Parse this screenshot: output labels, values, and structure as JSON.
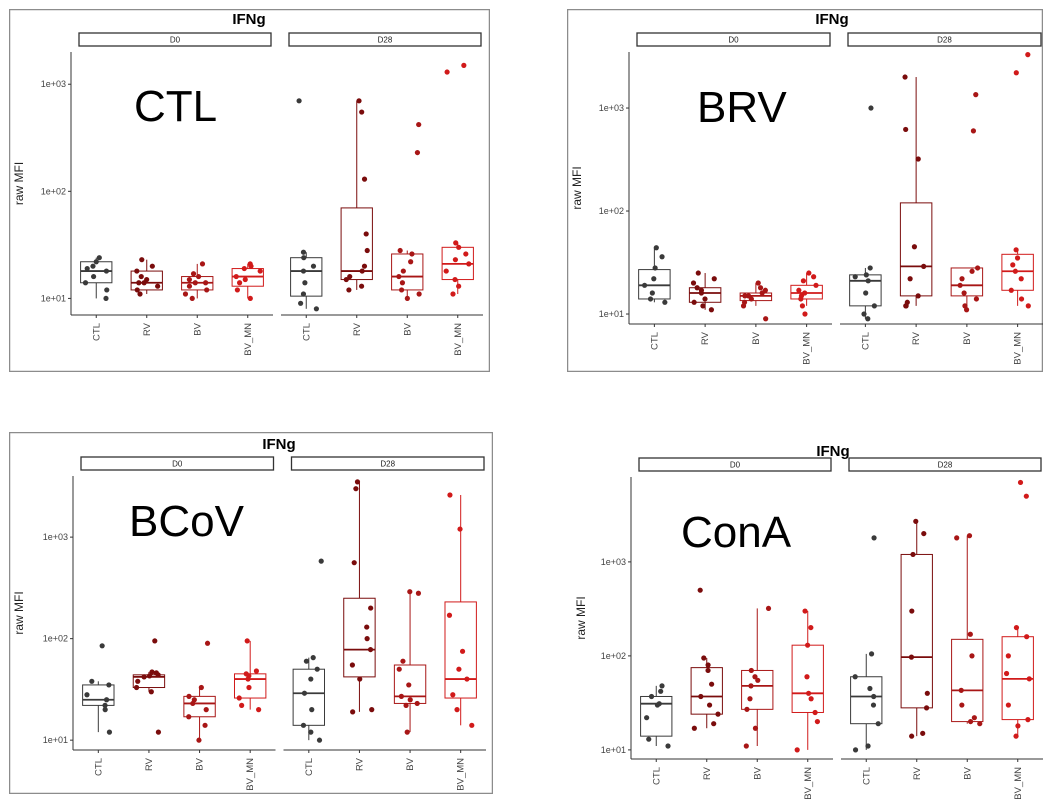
{
  "chart_data": [
    {
      "type": "box",
      "panel_label": "CTL",
      "title": "IFNg",
      "ylabel": "raw MFI",
      "yscale": "log",
      "ylim": [
        7,
        2000
      ],
      "yticks": [
        {
          "value": 10,
          "label": "1e+01"
        },
        {
          "value": 100,
          "label": "1e+02"
        },
        {
          "value": 1000,
          "label": "1e+03"
        }
      ],
      "facets": [
        {
          "name": "D0",
          "groups": [
            {
              "name": "CTL",
              "color": "#3a3a3a",
              "q1": 14,
              "median": 18,
              "q3": 22,
              "lower": 10,
              "upper": 24,
              "points": [
                10,
                12,
                14,
                16,
                18,
                19,
                20,
                22,
                24
              ]
            },
            {
              "name": "RV",
              "color": "#7a0c0c",
              "q1": 12,
              "median": 14,
              "q3": 18,
              "lower": 11,
              "upper": 23,
              "points": [
                11,
                12,
                13,
                14,
                14,
                15,
                16,
                18,
                20,
                23
              ]
            },
            {
              "name": "BV",
              "color": "#a81616",
              "q1": 12,
              "median": 14,
              "q3": 16,
              "lower": 10,
              "upper": 21,
              "points": [
                10,
                11,
                12,
                13,
                14,
                14,
                15,
                16,
                17,
                21
              ]
            },
            {
              "name": "BV_MN",
              "color": "#d11a1a",
              "q1": 13,
              "median": 16,
              "q3": 19,
              "lower": 10,
              "upper": 21,
              "points": [
                10,
                12,
                14,
                15,
                16,
                18,
                19,
                20,
                21
              ]
            }
          ]
        },
        {
          "name": "D28",
          "groups": [
            {
              "name": "CTL",
              "color": "#3a3a3a",
              "q1": 10.5,
              "median": 18,
              "q3": 24,
              "lower": 8,
              "upper": 27,
              "points": [
                8,
                9,
                11,
                14,
                18,
                20,
                24,
                27,
                700
              ]
            },
            {
              "name": "RV",
              "color": "#7a0c0c",
              "q1": 15,
              "median": 18,
              "q3": 70,
              "lower": 12,
              "upper": 700,
              "points": [
                12,
                13,
                15,
                16,
                18,
                20,
                28,
                40,
                130,
                550,
                700
              ]
            },
            {
              "name": "BV",
              "color": "#a81616",
              "q1": 12,
              "median": 16,
              "q3": 26,
              "lower": 10,
              "upper": 28,
              "points": [
                10,
                11,
                12,
                14,
                16,
                18,
                22,
                26,
                28,
                230,
                420
              ]
            },
            {
              "name": "BV_MN",
              "color": "#d11a1a",
              "q1": 15,
              "median": 21,
              "q3": 30,
              "lower": 11,
              "upper": 33,
              "points": [
                11,
                13,
                15,
                18,
                21,
                23,
                26,
                30,
                33,
                1300,
                1500
              ]
            }
          ]
        }
      ]
    },
    {
      "type": "box",
      "panel_label": "BRV",
      "title": "IFNg",
      "ylabel": "raw MFI",
      "yscale": "log",
      "ylim": [
        8,
        3500
      ],
      "yticks": [
        {
          "value": 10,
          "label": "1e+01"
        },
        {
          "value": 100,
          "label": "1e+02"
        },
        {
          "value": 1000,
          "label": "1e+03"
        }
      ],
      "facets": [
        {
          "name": "D0",
          "groups": [
            {
              "name": "CTL",
              "color": "#3a3a3a",
              "q1": 14,
              "median": 19,
              "q3": 27,
              "lower": 13,
              "upper": 44,
              "points": [
                13,
                14,
                16,
                19,
                22,
                28,
                36,
                44
              ]
            },
            {
              "name": "RV",
              "color": "#7a0c0c",
              "q1": 13,
              "median": 16,
              "q3": 18,
              "lower": 11,
              "upper": 25,
              "points": [
                11,
                12,
                13,
                14,
                16,
                17,
                18,
                20,
                22,
                25
              ]
            },
            {
              "name": "BV",
              "color": "#a81616",
              "q1": 13.5,
              "median": 15,
              "q3": 16,
              "lower": 12,
              "upper": 20,
              "points": [
                9,
                12,
                13,
                14,
                15,
                15,
                16,
                17,
                18,
                20
              ]
            },
            {
              "name": "BV_MN",
              "color": "#d11a1a",
              "q1": 14,
              "median": 16,
              "q3": 19,
              "lower": 12,
              "upper": 25,
              "points": [
                10,
                12,
                14,
                15,
                16,
                17,
                19,
                21,
                23,
                25
              ]
            }
          ]
        },
        {
          "name": "D28",
          "groups": [
            {
              "name": "CTL",
              "color": "#3a3a3a",
              "q1": 12,
              "median": 21,
              "q3": 24,
              "lower": 9,
              "upper": 28,
              "points": [
                9,
                10,
                12,
                16,
                21,
                23,
                24,
                28,
                1000
              ]
            },
            {
              "name": "RV",
              "color": "#7a0c0c",
              "q1": 15,
              "median": 29,
              "q3": 120,
              "lower": 12,
              "upper": 2000,
              "points": [
                12,
                12,
                13,
                15,
                22,
                29,
                45,
                320,
                620,
                2000
              ]
            },
            {
              "name": "BV",
              "color": "#a81616",
              "q1": 15,
              "median": 19,
              "q3": 28,
              "lower": 11,
              "upper": 28,
              "points": [
                11,
                12,
                14,
                16,
                19,
                22,
                26,
                28,
                600,
                1350
              ]
            },
            {
              "name": "BV_MN",
              "color": "#d11a1a",
              "q1": 17,
              "median": 26,
              "q3": 38,
              "lower": 12,
              "upper": 42,
              "points": [
                12,
                14,
                17,
                22,
                26,
                30,
                35,
                42,
                2200,
                3300
              ]
            }
          ]
        }
      ]
    },
    {
      "type": "box",
      "panel_label": "BCoV",
      "title": "IFNg",
      "ylabel": "raw MFI",
      "yscale": "log",
      "ylim": [
        8,
        4000
      ],
      "yticks": [
        {
          "value": 10,
          "label": "1e+01"
        },
        {
          "value": 100,
          "label": "1e+02"
        },
        {
          "value": 1000,
          "label": "1e+03"
        }
      ],
      "facets": [
        {
          "name": "D0",
          "groups": [
            {
              "name": "CTL",
              "color": "#3a3a3a",
              "q1": 22,
              "median": 25,
              "q3": 35,
              "lower": 12,
              "upper": 38,
              "points": [
                12,
                20,
                22,
                25,
                28,
                35,
                38,
                85
              ]
            },
            {
              "name": "RV",
              "color": "#7a0c0c",
              "q1": 33,
              "median": 42,
              "q3": 44,
              "lower": 30,
              "upper": 47,
              "points": [
                12,
                30,
                33,
                38,
                42,
                43,
                44,
                46,
                47,
                95
              ]
            },
            {
              "name": "BV",
              "color": "#a81616",
              "q1": 17,
              "median": 23,
              "q3": 27,
              "lower": 10,
              "upper": 33,
              "points": [
                10,
                14,
                17,
                20,
                23,
                25,
                27,
                33,
                90
              ]
            },
            {
              "name": "BV_MN",
              "color": "#d11a1a",
              "q1": 26,
              "median": 40,
              "q3": 45,
              "lower": 20,
              "upper": 95,
              "points": [
                20,
                22,
                26,
                33,
                40,
                43,
                45,
                48,
                95
              ]
            }
          ]
        },
        {
          "name": "D28",
          "groups": [
            {
              "name": "CTL",
              "color": "#3a3a3a",
              "q1": 14,
              "median": 29,
              "q3": 50,
              "lower": 10,
              "upper": 65,
              "points": [
                10,
                12,
                14,
                20,
                29,
                40,
                50,
                60,
                65,
                580
              ]
            },
            {
              "name": "RV",
              "color": "#7a0c0c",
              "q1": 42,
              "median": 78,
              "q3": 250,
              "lower": 19,
              "upper": 3500,
              "points": [
                19,
                20,
                40,
                55,
                78,
                100,
                130,
                200,
                560,
                3000,
                3500
              ]
            },
            {
              "name": "BV",
              "color": "#a81616",
              "q1": 23,
              "median": 27,
              "q3": 55,
              "lower": 12,
              "upper": 280,
              "points": [
                12,
                22,
                23,
                25,
                27,
                35,
                50,
                60,
                280,
                290
              ]
            },
            {
              "name": "BV_MN",
              "color": "#d11a1a",
              "q1": 26,
              "median": 40,
              "q3": 230,
              "lower": 14,
              "upper": 2600,
              "points": [
                14,
                20,
                28,
                40,
                50,
                75,
                170,
                1200,
                2600
              ]
            }
          ]
        }
      ]
    },
    {
      "type": "box",
      "panel_label": "ConA",
      "title": "IFNg",
      "ylabel": "raw MFI",
      "yscale": "log",
      "ylim": [
        8,
        8000
      ],
      "yticks": [
        {
          "value": 10,
          "label": "1e+01"
        },
        {
          "value": 100,
          "label": "1e+02"
        },
        {
          "value": 1000,
          "label": "1e+03"
        }
      ],
      "facets": [
        {
          "name": "D0",
          "groups": [
            {
              "name": "CTL",
              "color": "#3a3a3a",
              "q1": 14,
              "median": 31,
              "q3": 37,
              "lower": 11,
              "upper": 48,
              "points": [
                11,
                13,
                22,
                30,
                31,
                37,
                42,
                48
              ]
            },
            {
              "name": "RV",
              "color": "#7a0c0c",
              "q1": 24,
              "median": 37,
              "q3": 75,
              "lower": 17,
              "upper": 95,
              "points": [
                17,
                19,
                24,
                30,
                37,
                50,
                70,
                80,
                95,
                500
              ]
            },
            {
              "name": "BV",
              "color": "#a81616",
              "q1": 27,
              "median": 48,
              "q3": 70,
              "lower": 11,
              "upper": 320,
              "points": [
                11,
                17,
                27,
                35,
                48,
                55,
                60,
                70,
                320
              ]
            },
            {
              "name": "BV_MN",
              "color": "#d11a1a",
              "q1": 25,
              "median": 40,
              "q3": 130,
              "lower": 10,
              "upper": 300,
              "points": [
                10,
                20,
                25,
                35,
                40,
                60,
                130,
                200,
                300
              ]
            }
          ]
        },
        {
          "name": "D28",
          "groups": [
            {
              "name": "CTL",
              "color": "#3a3a3a",
              "q1": 19,
              "median": 37,
              "q3": 60,
              "lower": 10,
              "upper": 105,
              "points": [
                10,
                11,
                19,
                30,
                37,
                45,
                60,
                105,
                1800
              ]
            },
            {
              "name": "RV",
              "color": "#7a0c0c",
              "q1": 28,
              "median": 97,
              "q3": 1200,
              "lower": 14,
              "upper": 2700,
              "points": [
                14,
                15,
                28,
                40,
                97,
                300,
                1200,
                2000,
                2700
              ]
            },
            {
              "name": "BV",
              "color": "#a81616",
              "q1": 20,
              "median": 43,
              "q3": 150,
              "lower": 19,
              "upper": 1900,
              "points": [
                19,
                20,
                22,
                30,
                43,
                100,
                170,
                1800,
                1900
              ]
            },
            {
              "name": "BV_MN",
              "color": "#d11a1a",
              "q1": 21,
              "median": 57,
              "q3": 160,
              "lower": 14,
              "upper": 200,
              "points": [
                14,
                18,
                21,
                30,
                57,
                65,
                100,
                160,
                200,
                5000,
                7000
              ]
            }
          ]
        }
      ]
    }
  ]
}
